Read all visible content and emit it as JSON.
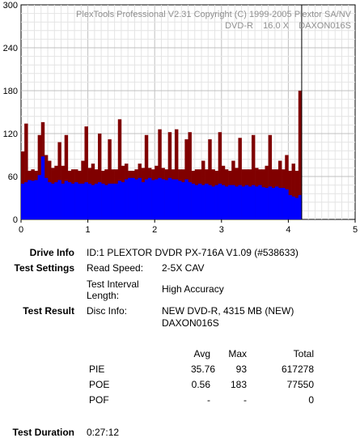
{
  "chart_data": {
    "type": "bar",
    "header_line1": "PlexTools Professional V2.31 Copyright (C) 1999-2005 Plextor SA/NV",
    "header_line2": "DVD-R    16.0 X    DAXON016S",
    "xlim": [
      0,
      5
    ],
    "ylim": [
      0,
      300
    ],
    "x_ticks": [
      "0",
      "1",
      "2",
      "3",
      "4",
      "5"
    ],
    "y_ticks": [
      "0",
      "60",
      "120",
      "180",
      "240",
      "300"
    ],
    "grid": true,
    "marker_x": 4.2,
    "series": [
      {
        "role": "PIE",
        "color": "#800000",
        "x": [
          0.0,
          0.05,
          0.1,
          0.15,
          0.2,
          0.25,
          0.3,
          0.35,
          0.4,
          0.45,
          0.5,
          0.55,
          0.6,
          0.65,
          0.7,
          0.75,
          0.8,
          0.85,
          0.9,
          0.95,
          1.0,
          1.05,
          1.1,
          1.15,
          1.2,
          1.25,
          1.3,
          1.35,
          1.4,
          1.45,
          1.5,
          1.55,
          1.6,
          1.65,
          1.7,
          1.75,
          1.8,
          1.85,
          1.9,
          1.95,
          2.0,
          2.05,
          2.1,
          2.15,
          2.2,
          2.25,
          2.3,
          2.35,
          2.4,
          2.45,
          2.5,
          2.55,
          2.6,
          2.65,
          2.7,
          2.75,
          2.8,
          2.85,
          2.9,
          2.95,
          3.0,
          3.05,
          3.1,
          3.15,
          3.2,
          3.25,
          3.3,
          3.35,
          3.4,
          3.45,
          3.5,
          3.55,
          3.6,
          3.65,
          3.7,
          3.75,
          3.8,
          3.85,
          3.9,
          3.95,
          4.0,
          4.05,
          4.1,
          4.15,
          4.2
        ],
        "values": [
          95,
          134,
          68,
          70,
          68,
          118,
          136,
          90,
          82,
          72,
          75,
          108,
          75,
          118,
          68,
          70,
          70,
          68,
          82,
          130,
          72,
          78,
          70,
          120,
          68,
          70,
          112,
          70,
          70,
          140,
          75,
          78,
          68,
          68,
          70,
          78,
          72,
          118,
          72,
          70,
          75,
          126,
          72,
          70,
          122,
          70,
          126,
          70,
          70,
          112,
          122,
          68,
          70,
          70,
          82,
          70,
          112,
          70,
          68,
          122,
          75,
          70,
          68,
          82,
          72,
          114,
          70,
          70,
          70,
          118,
          72,
          70,
          70,
          75,
          118,
          70,
          70,
          82,
          70,
          90,
          68,
          78,
          68,
          180,
          80
        ]
      },
      {
        "role": "PIF",
        "color": "#0000ff",
        "x": [
          0.0,
          0.05,
          0.1,
          0.15,
          0.2,
          0.25,
          0.3,
          0.35,
          0.4,
          0.45,
          0.5,
          0.55,
          0.6,
          0.65,
          0.7,
          0.75,
          0.8,
          0.85,
          0.9,
          0.95,
          1.0,
          1.05,
          1.1,
          1.15,
          1.2,
          1.25,
          1.3,
          1.35,
          1.4,
          1.45,
          1.5,
          1.55,
          1.6,
          1.65,
          1.7,
          1.75,
          1.8,
          1.85,
          1.9,
          1.95,
          2.0,
          2.05,
          2.1,
          2.15,
          2.2,
          2.25,
          2.3,
          2.35,
          2.4,
          2.45,
          2.5,
          2.55,
          2.6,
          2.65,
          2.7,
          2.75,
          2.8,
          2.85,
          2.9,
          2.95,
          3.0,
          3.05,
          3.1,
          3.15,
          3.2,
          3.25,
          3.3,
          3.35,
          3.4,
          3.45,
          3.5,
          3.55,
          3.6,
          3.65,
          3.7,
          3.75,
          3.8,
          3.85,
          3.9,
          3.95,
          4.0,
          4.05,
          4.1,
          4.15,
          4.2
        ],
        "values": [
          50,
          52,
          55,
          54,
          55,
          62,
          88,
          58,
          52,
          50,
          52,
          55,
          50,
          54,
          52,
          50,
          52,
          50,
          50,
          52,
          50,
          48,
          50,
          52,
          50,
          48,
          50,
          50,
          50,
          54,
          52,
          56,
          58,
          58,
          56,
          58,
          52,
          56,
          58,
          55,
          56,
          58,
          56,
          55,
          58,
          56,
          56,
          54,
          52,
          56,
          52,
          50,
          48,
          50,
          48,
          50,
          48,
          46,
          48,
          50,
          48,
          46,
          48,
          48,
          46,
          48,
          46,
          48,
          46,
          48,
          46,
          48,
          45,
          44,
          46,
          44,
          46,
          44,
          44,
          42,
          34,
          32,
          30,
          34,
          36
        ]
      }
    ]
  },
  "info": {
    "drive_label": "Drive Info",
    "drive_value": "ID:1 PLEXTOR DVDR PX-716A V1.09 (#538633)",
    "settings_label": "Test Settings",
    "read_speed_label": "Read Speed:",
    "read_speed_value": "2-5X CAV",
    "interval_label_1": "Test Interval",
    "interval_label_2": "Length:",
    "interval_value": "High Accuracy",
    "result_label": "Test Result",
    "disc_info_label": "Disc Info:",
    "disc_info_value_1": "NEW DVD-R, 4315 MB (NEW)",
    "disc_info_value_2": "DAXON016S",
    "stats_headers": [
      "Avg",
      "Max",
      "Total"
    ],
    "stats_rows": [
      {
        "name": "PIE",
        "avg": "35.76",
        "max": "93",
        "total": "617278"
      },
      {
        "name": "POE",
        "avg": "0.56",
        "max": "183",
        "total": "77550"
      },
      {
        "name": "POF",
        "avg": "-",
        "max": "-",
        "total": "0"
      }
    ],
    "duration_label": "Test Duration",
    "duration_value": "0:27:12"
  }
}
